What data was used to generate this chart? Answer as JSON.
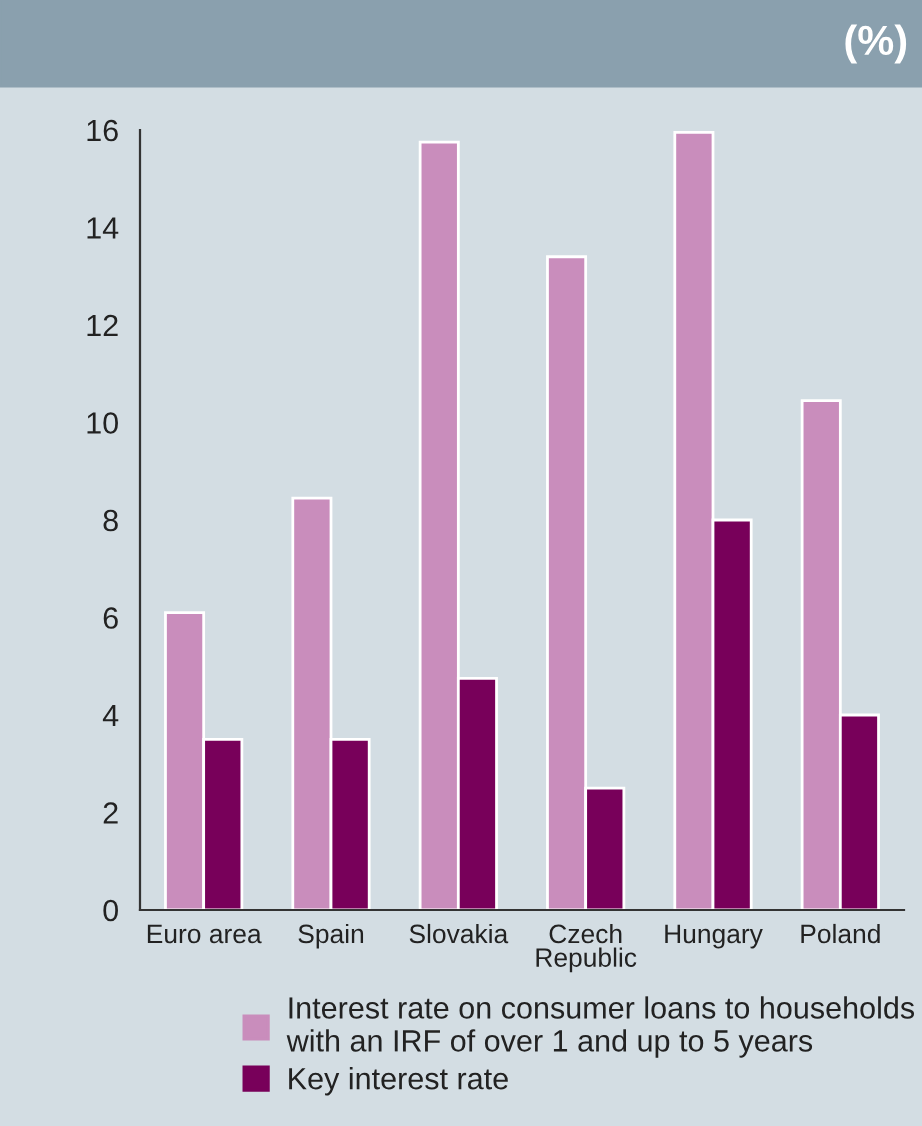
{
  "chart_data": {
    "type": "bar",
    "title": "(%)",
    "categories": [
      "Euro area",
      "Spain",
      "Slovakia",
      "Czech\nRepublic",
      "Hungary",
      "Poland"
    ],
    "series": [
      {
        "name": "Interest rate on consumer loans to households\nwith an IRF of over 1 and up to 5 years",
        "color": "#c98dbc",
        "values": [
          6.1,
          8.45,
          15.75,
          13.4,
          15.95,
          10.45
        ]
      },
      {
        "name": "Key interest rate",
        "color": "#78005a",
        "values": [
          3.5,
          3.5,
          4.75,
          2.5,
          8.0,
          4.0
        ]
      }
    ],
    "ylim": [
      0,
      16
    ],
    "yticks": [
      0,
      2,
      4,
      6,
      8,
      10,
      12,
      14,
      16
    ],
    "grid": false,
    "legend": "bottom"
  }
}
